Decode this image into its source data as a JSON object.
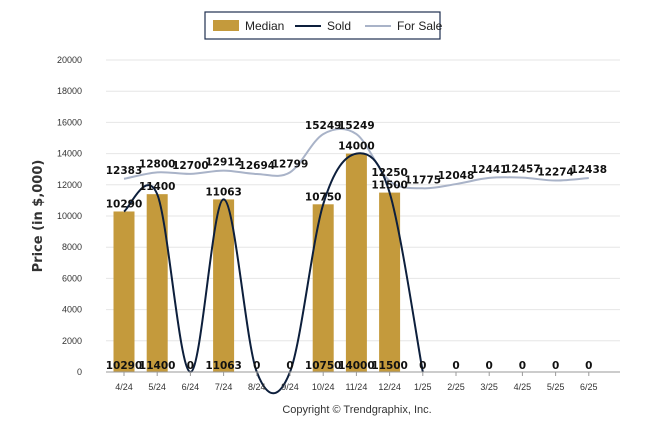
{
  "chart_data": {
    "type": "bar",
    "categories": [
      "4/24",
      "5/24",
      "6/24",
      "7/24",
      "8/24",
      "9/24",
      "10/24",
      "11/24",
      "12/24",
      "1/25",
      "2/25",
      "3/25",
      "4/25",
      "5/25",
      "6/25"
    ],
    "series": [
      {
        "name": "Median",
        "type": "bar",
        "color": "#c49a3c",
        "values": [
          10290,
          11400,
          0,
          11063,
          0,
          0,
          10750,
          14000,
          11500,
          0,
          0,
          0,
          0,
          0,
          0
        ]
      },
      {
        "name": "Sold",
        "type": "line",
        "color": "#0d1f3c",
        "values": [
          10290,
          11400,
          0,
          11063,
          0,
          0,
          10750,
          14000,
          11500,
          0,
          0,
          0,
          0,
          0,
          0
        ]
      },
      {
        "name": "For Sale",
        "type": "line",
        "color": "#a9b3c8",
        "values": [
          12383,
          12800,
          12700,
          12912,
          12694,
          12799,
          15249,
          15249,
          12250,
          11775,
          12048,
          12441,
          12457,
          12274,
          12438
        ]
      }
    ],
    "ylabel": "Price (in $,000)",
    "xlabel": "",
    "ylim": [
      0,
      20000
    ],
    "yticks": [
      0,
      2000,
      4000,
      6000,
      8000,
      10000,
      12000,
      14000,
      16000,
      18000,
      20000
    ],
    "grid": true,
    "legend": "top-center"
  },
  "footer": {
    "copyright": "Copyright © Trendgraphix, Inc."
  }
}
